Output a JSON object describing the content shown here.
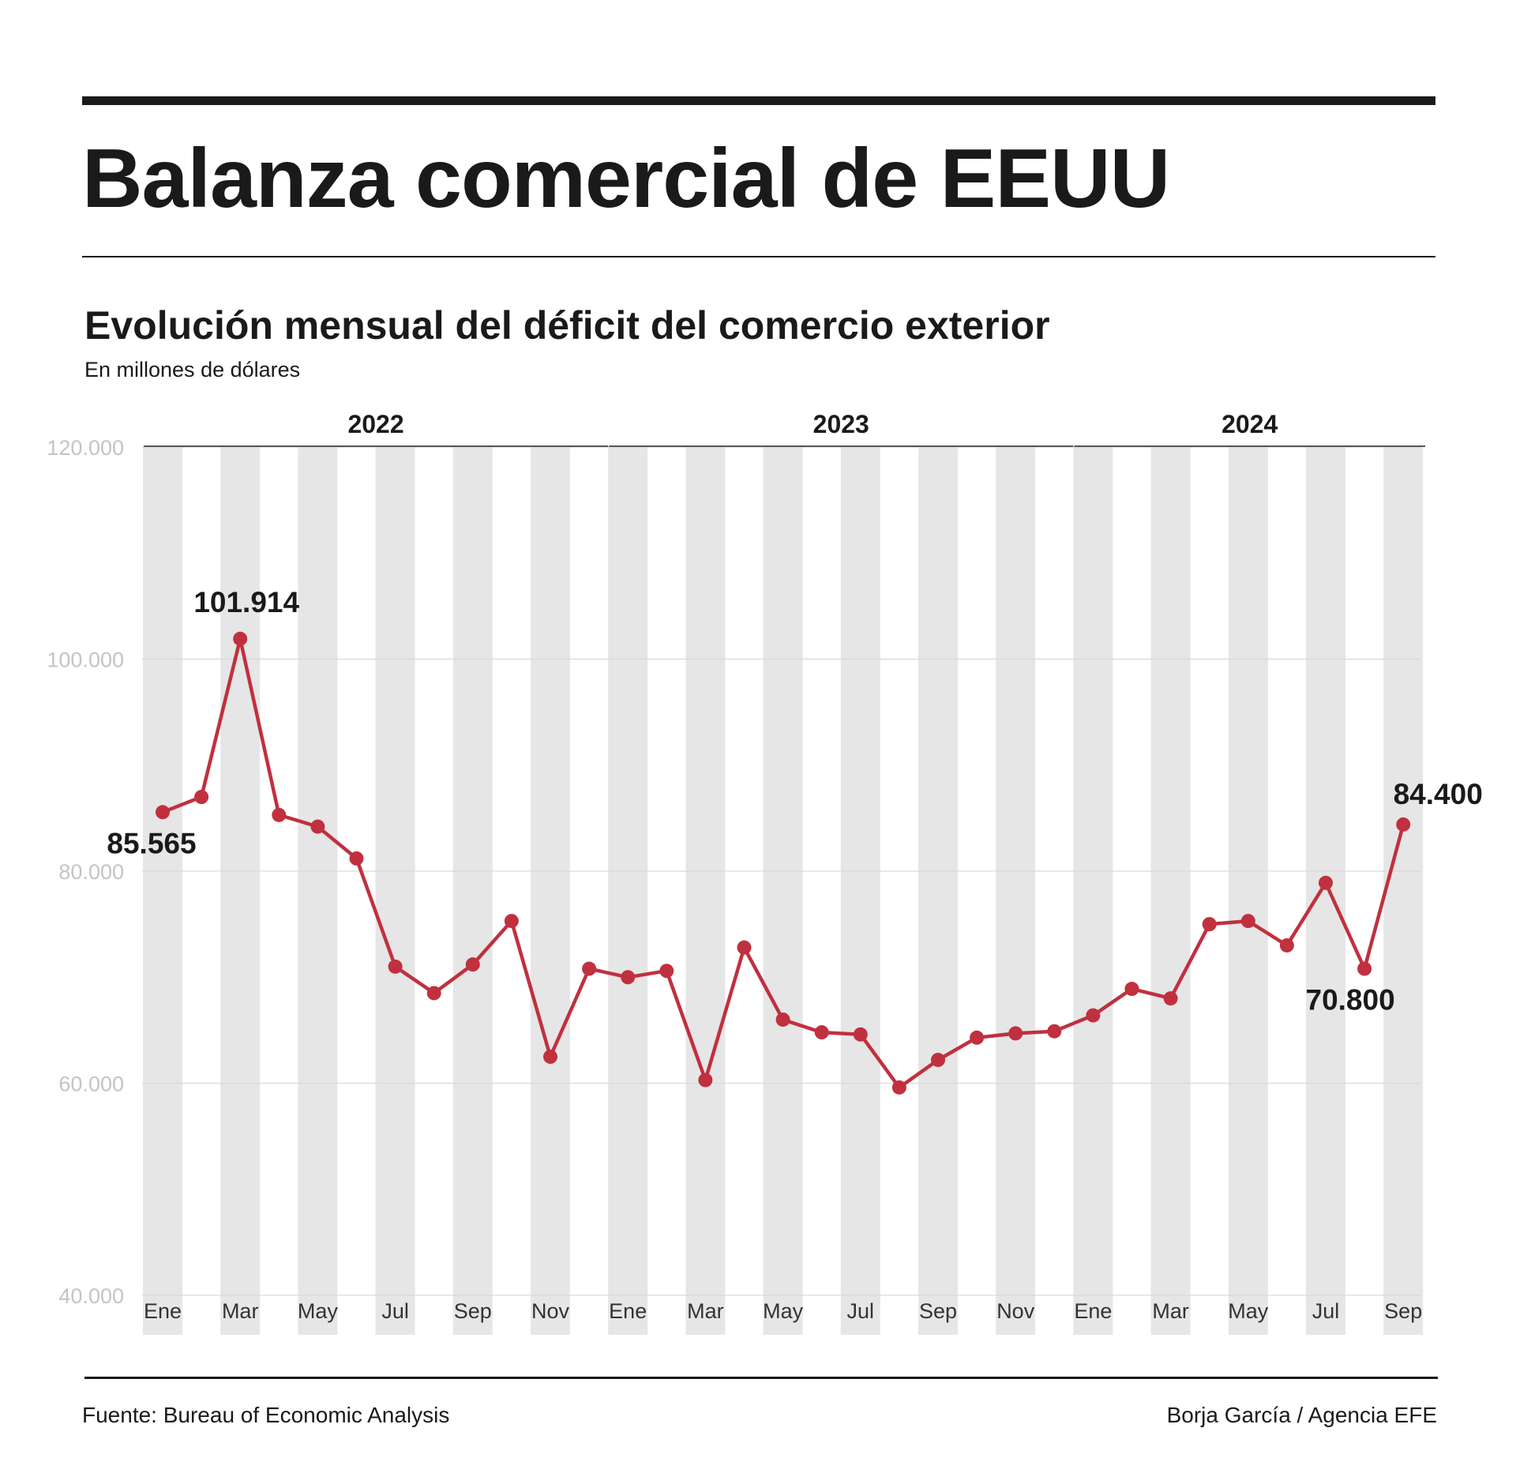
{
  "header": {
    "title": "Balanza comercial de EEUU",
    "subtitle": "Evolución mensual del déficit del comercio exterior",
    "units": "En millones de dólares"
  },
  "footer": {
    "source": "Fuente: Bureau of Economic Analysis",
    "credit": "Borja García / Agencia EFE"
  },
  "chart_data": {
    "type": "line",
    "title": "Evolución mensual del déficit del comercio exterior",
    "ylabel": "En millones de dólares",
    "ylim": [
      40000,
      120000
    ],
    "y_ticks": [
      40000,
      60000,
      80000,
      100000,
      120000
    ],
    "y_tick_labels": [
      "40.000",
      "60.000",
      "80.000",
      "100.000",
      "120.000"
    ],
    "years": [
      {
        "label": "2022",
        "first_index": 0,
        "last_index": 11
      },
      {
        "label": "2023",
        "first_index": 12,
        "last_index": 23
      },
      {
        "label": "2024",
        "first_index": 24,
        "last_index": 32
      }
    ],
    "x": [
      "2022-01",
      "2022-02",
      "2022-03",
      "2022-04",
      "2022-05",
      "2022-06",
      "2022-07",
      "2022-08",
      "2022-09",
      "2022-10",
      "2022-11",
      "2022-12",
      "2023-01",
      "2023-02",
      "2023-03",
      "2023-04",
      "2023-05",
      "2023-06",
      "2023-07",
      "2023-08",
      "2023-09",
      "2023-10",
      "2023-11",
      "2023-12",
      "2024-01",
      "2024-02",
      "2024-03",
      "2024-04",
      "2024-05",
      "2024-06",
      "2024-07",
      "2024-08",
      "2024-09"
    ],
    "x_tick_labels": [
      "Ene",
      "",
      "Mar",
      "",
      "May",
      "",
      "Jul",
      "",
      "Sep",
      "",
      "Nov",
      "",
      "Ene",
      "",
      "Mar",
      "",
      "May",
      "",
      "Jul",
      "",
      "Sep",
      "",
      "Nov",
      "",
      "Ene",
      "",
      "Mar",
      "",
      "May",
      "",
      "Jul",
      "",
      "Sep"
    ],
    "series": [
      {
        "values": [
          85565,
          87000,
          101914,
          85300,
          84200,
          81200,
          71000,
          68500,
          71200,
          75300,
          62500,
          70800,
          70000,
          70600,
          60300,
          72800,
          66000,
          64800,
          64600,
          59600,
          62200,
          64300,
          64700,
          64900,
          66400,
          68900,
          68000,
          75000,
          75300,
          73000,
          78900,
          70800,
          84400
        ],
        "color": "#c1303e"
      }
    ],
    "annotations": [
      {
        "index": 0,
        "label": "85.565",
        "position": "below-left"
      },
      {
        "index": 2,
        "label": "101.914",
        "position": "above"
      },
      {
        "index": 31,
        "label": "70.800",
        "position": "below"
      },
      {
        "index": 32,
        "label": "84.400",
        "position": "above-right"
      }
    ],
    "grid": true,
    "band_color": "#e6e6e6",
    "gridline_color": "#d9d9d9",
    "legend": "none"
  }
}
